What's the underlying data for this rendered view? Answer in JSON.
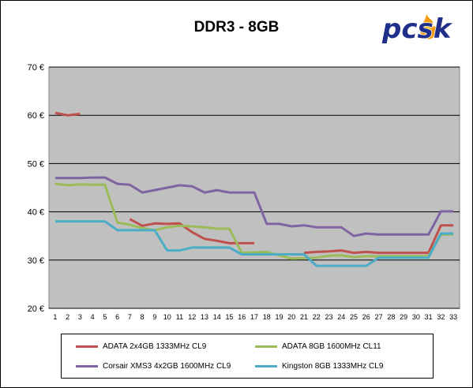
{
  "chart_data": {
    "type": "line",
    "title": "DDR3 - 8GB",
    "xlabel": "",
    "ylabel": "",
    "x": [
      1,
      2,
      3,
      4,
      5,
      6,
      7,
      8,
      9,
      10,
      11,
      12,
      13,
      14,
      15,
      16,
      17,
      18,
      19,
      20,
      21,
      22,
      23,
      24,
      25,
      26,
      27,
      28,
      29,
      30,
      31,
      32,
      33
    ],
    "ylim": [
      20,
      70
    ],
    "y_ticks": [
      "20 €",
      "30 €",
      "40 €",
      "50 €",
      "60 €",
      "70 €"
    ],
    "y_tick_values": [
      20,
      30,
      40,
      50,
      60,
      70
    ],
    "grid": "horizontal",
    "legend_position": "bottom",
    "series": [
      {
        "name": "ADATA 2x4GB 1333MHz CL9",
        "color": "#c0504d",
        "values": [
          60.5,
          60.0,
          60.3,
          null,
          null,
          null,
          38.5,
          37.1,
          37.6,
          37.5,
          37.6,
          35.8,
          34.4,
          34.0,
          33.5,
          33.5,
          33.5,
          null,
          null,
          null,
          31.5,
          31.7,
          31.8,
          32.0,
          31.5,
          31.7,
          31.5,
          31.5,
          31.5,
          31.5,
          31.5,
          37.2,
          37.2
        ]
      },
      {
        "name": "ADATA 8GB 1600MHz CL11",
        "color": "#9bbb59",
        "values": [
          45.8,
          45.5,
          45.7,
          45.6,
          45.6,
          37.8,
          37.3,
          36.6,
          36.2,
          36.8,
          37.1,
          37.0,
          36.8,
          36.5,
          36.5,
          31.5,
          31.6,
          31.7,
          31.0,
          30.3,
          30.4,
          30.5,
          30.9,
          31.0,
          30.6,
          30.8,
          30.8,
          30.8,
          30.8,
          30.8,
          30.8,
          35.3,
          35.3
        ]
      },
      {
        "name": "Corsair XMS3 4x2GB 1600MHz CL9",
        "color": "#8064a2",
        "values": [
          47.0,
          47.0,
          47.0,
          47.1,
          47.1,
          45.8,
          45.6,
          44.0,
          44.5,
          45.0,
          45.5,
          45.3,
          44.0,
          44.5,
          44.0,
          44.0,
          44.0,
          37.5,
          37.5,
          37.0,
          37.2,
          36.8,
          36.8,
          36.8,
          35.0,
          35.5,
          35.3,
          35.3,
          35.3,
          35.3,
          35.3,
          40.1,
          40.1
        ]
      },
      {
        "name": "Kingston 8GB 1333MHz CL9",
        "color": "#4bacc6",
        "values": [
          38.0,
          38.0,
          38.0,
          38.0,
          38.0,
          36.2,
          36.2,
          36.2,
          36.2,
          32.0,
          32.0,
          32.6,
          32.6,
          32.6,
          32.6,
          31.2,
          31.2,
          31.2,
          31.2,
          31.2,
          31.2,
          28.8,
          28.8,
          28.8,
          28.8,
          28.8,
          30.5,
          30.5,
          30.5,
          30.5,
          30.5,
          35.5,
          35.5
        ]
      }
    ]
  },
  "logo": {
    "text": "pcsk"
  }
}
